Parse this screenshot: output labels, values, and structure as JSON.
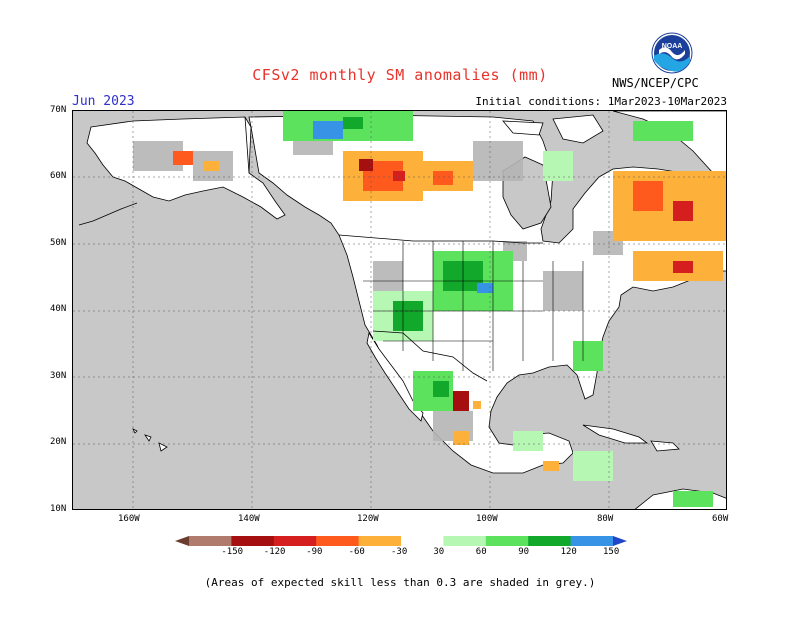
{
  "title": "CFSv2 monthly SM anomalies (mm)",
  "month": "Jun 2023",
  "initial_conditions": "Initial conditions: 1Mar2023-10Mar2023",
  "agency": "NWS/NCEP/CPC",
  "logo_text": "NOAA",
  "footnote": "(Areas of expected skill less than 0.3 are shaded in grey.)",
  "latitude_labels": [
    "70N",
    "60N",
    "50N",
    "40N",
    "30N",
    "20N",
    "10N"
  ],
  "longitude_labels": [
    "160W",
    "140W",
    "120W",
    "100W",
    "80W",
    "60W"
  ],
  "colorbar": {
    "labels": [
      "-150",
      "-120",
      "-90",
      "-60",
      "-30",
      "30",
      "60",
      "90",
      "120",
      "150"
    ],
    "colors": [
      "#6b3d2e",
      "#b07a6c",
      "#a50f0f",
      "#d51e1e",
      "#ff5a1e",
      "#fdb13a",
      "#ffffff",
      "#b6f7b3",
      "#5ce25c",
      "#11a82b",
      "#3793e6",
      "#1f46c8"
    ]
  },
  "map_colors": {
    "land": "#ffffff",
    "ocean": "#c8c8c8",
    "low_skill": "#b5b5b5",
    "border": "#000000"
  }
}
